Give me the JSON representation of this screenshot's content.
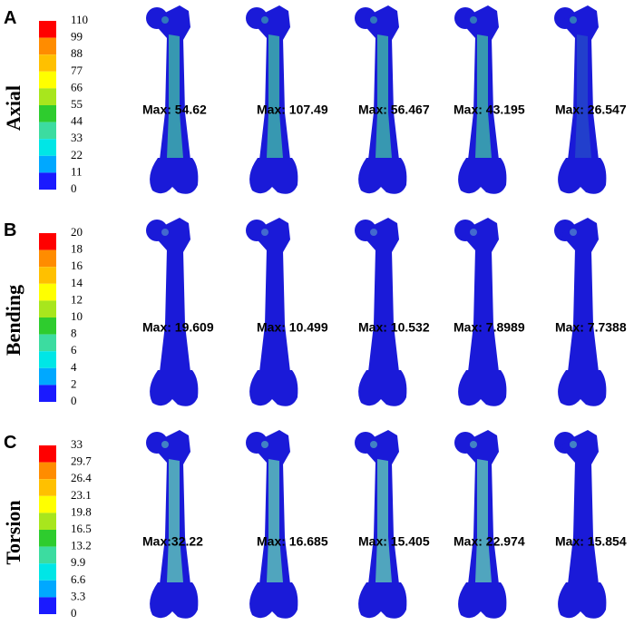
{
  "panels": [
    {
      "letter": "A",
      "label": "Axial",
      "legend_ticks": [
        "110",
        "99",
        "88",
        "77",
        "66",
        "55",
        "44",
        "33",
        "22",
        "11",
        "0"
      ],
      "max_labels": [
        "Max: 54.62",
        "Max: 107.49",
        "Max: 56.467",
        "Max: 43.195",
        "Max: 26.547"
      ]
    },
    {
      "letter": "B",
      "label": "Bending",
      "legend_ticks": [
        "20",
        "18",
        "16",
        "14",
        "12",
        "10",
        "8",
        "6",
        "4",
        "2",
        "0"
      ],
      "max_labels": [
        "Max: 19.609",
        "Max: 10.499",
        "Max: 10.532",
        "Max: 7.8989",
        "Max: 7.7388"
      ]
    },
    {
      "letter": "C",
      "label": "Torsion",
      "legend_ticks": [
        "33",
        "29.7",
        "26.4",
        "23.1",
        "19.8",
        "16.5",
        "13.2",
        "9.9",
        "6.6",
        "3.3",
        "0"
      ],
      "max_labels": [
        "Max:32.22",
        "Max: 16.685",
        "Max: 15.405",
        "Max: 22.974",
        "Max: 15.854"
      ]
    }
  ]
}
